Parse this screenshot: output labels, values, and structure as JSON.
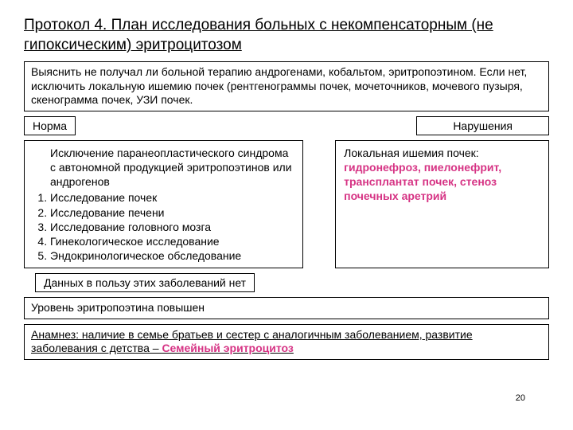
{
  "title": "Протокол 4. План исследования больных с некомпенсаторным (не гипоксическим) эритроцитозом",
  "box1": "Выяснить не получал ли больной терапию андрогенами, кобальтом, эритропоэтином. Если нет, исключить локальную ишемию почек (рентгенограммы почек, мочеточников, мочевого пузыря, скенограмма почек, УЗИ почек.",
  "label_left": "Норма",
  "label_right": "Нарушения",
  "left_intro": "Исключение паранеопластического синдрома с автономной продукцией эритропоэтинов или андрогенов",
  "left_items": {
    "i1": "Исследование почек",
    "i2": "Исследование печени",
    "i3": "Исследование головного мозга",
    "i4": "Гинекологическое исследование",
    "i5": "Эндокринологическое обследование"
  },
  "right_intro": "Локальная ишемия почек: ",
  "right_hl": "гидронефроз, пиелонефрит, трансплантат почек, стеноз почечных аретрий",
  "box_narrow": "Данных в пользу этих заболеваний нет",
  "box_epo": "Уровень эритропоэтина повышен",
  "anamnez_pre": "Анамнез: наличие в семье братьев и сестер с аналогичным заболеванием, развитие заболевания с детства – ",
  "anamnez_hl": "Семейный эритроцитоз",
  "page": "20"
}
